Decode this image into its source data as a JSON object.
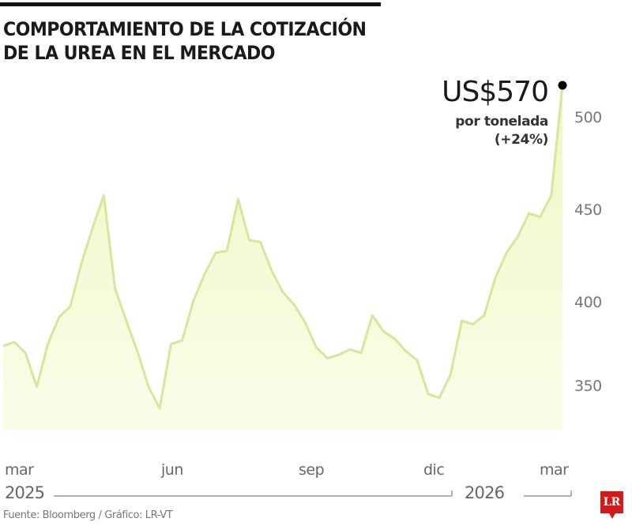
{
  "header": {
    "title_line1": "COMPORTAMIENTO DE LA COTIZACIÓN",
    "title_line2": "DE LA UREA EN EL MERCADO"
  },
  "callout": {
    "price": "US$570",
    "unit": "por tonelada",
    "change": "(+24%)"
  },
  "y_axis": {
    "ticks": [
      "500",
      "450",
      "400",
      "350"
    ]
  },
  "x_axis": {
    "months": [
      "mar",
      "jun",
      "sep",
      "dic",
      "mar"
    ],
    "years": [
      "2025",
      "2026"
    ]
  },
  "footer": {
    "source": "Fuente: Bloomberg / Gráfico: LR-VT",
    "logo": "LR"
  },
  "colors": {
    "line": "#d4e89a",
    "fill_top": "#eef7c4",
    "fill_bottom": "#fbfde9",
    "dot": "#000000",
    "logo": "#d11a1a"
  },
  "chart_data": {
    "type": "area",
    "title": "Comportamiento de la cotización de la urea en el mercado",
    "xlabel": "",
    "ylabel": "US$ por tonelada",
    "ylim": [
      325,
      520
    ],
    "y_ticks": [
      350,
      400,
      450,
      500
    ],
    "x_ticks": [
      "mar 2025",
      "jun 2025",
      "sep 2025",
      "dic 2025",
      "mar 2026"
    ],
    "grid": false,
    "legend": "none",
    "annotation": {
      "label": "US$570 por tonelada (+24%)",
      "value": 570,
      "position": "last point"
    },
    "series": [
      {
        "name": "Urea (US$/t)",
        "values": [
          373,
          375,
          369,
          350,
          374,
          389,
          395,
          419,
          439,
          457,
          405,
          387,
          370,
          350,
          338,
          374,
          376,
          398,
          413,
          425,
          426,
          455,
          432,
          431,
          415,
          403,
          396,
          386,
          372,
          366,
          368,
          371,
          369,
          390,
          381,
          377,
          370,
          365,
          346,
          344,
          357,
          387,
          385,
          390,
          411,
          425,
          434,
          447,
          445,
          457,
          570
        ]
      }
    ]
  }
}
